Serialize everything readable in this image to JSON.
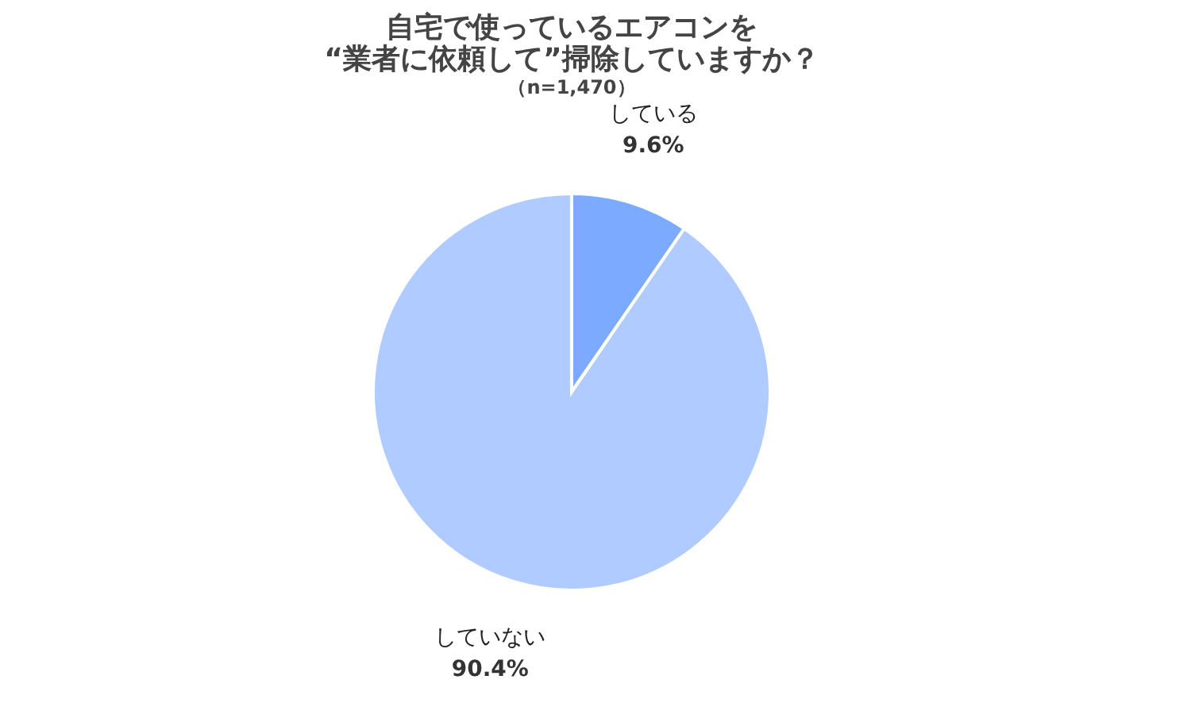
{
  "chart_data": {
    "type": "pie",
    "title": "自宅で使っているエアコンを\n“業者に依頼して”掃除していますか？",
    "subtitle": "（n=1,470）",
    "categories": [
      "している",
      "していない"
    ],
    "values": [
      9.6,
      90.4
    ],
    "colors": [
      "#7baaff",
      "#b0cbff"
    ],
    "value_labels": [
      "9.6%",
      "90.4%"
    ],
    "legend": false
  }
}
